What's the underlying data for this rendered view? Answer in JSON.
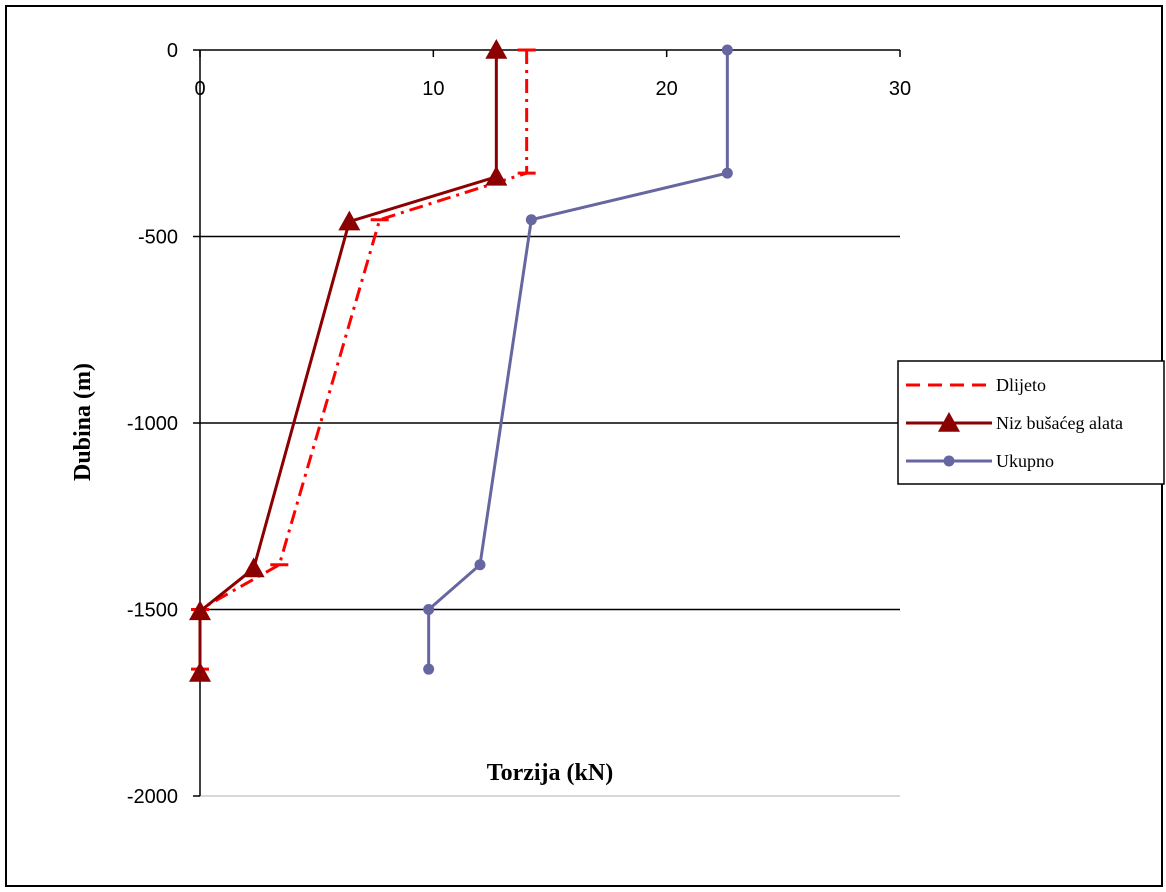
{
  "chart_data": {
    "type": "line",
    "xlabel": "Torzija (kN)",
    "ylabel": "Dubina (m)",
    "xlim": [
      0,
      30
    ],
    "ylim": [
      -2000,
      0
    ],
    "x_ticks": [
      0,
      10,
      20,
      30
    ],
    "y_ticks": [
      0,
      -500,
      -1000,
      -1500,
      -2000
    ],
    "grid": "horizontal major gridlines",
    "legend_position": "right",
    "series": [
      {
        "name": "Dlijeto",
        "color": "#ff0000",
        "style": "dash-dot",
        "marker": "none",
        "points": [
          [
            14,
            0
          ],
          [
            14,
            -330
          ],
          [
            7.7,
            -455
          ],
          [
            3.4,
            -1380
          ],
          [
            0,
            -1500
          ],
          [
            0,
            -1660
          ]
        ]
      },
      {
        "name": "Niz bušaćeg alata",
        "color": "#8b0000",
        "style": "solid",
        "marker": "triangle",
        "points": [
          [
            12.7,
            0
          ],
          [
            12.7,
            -340
          ],
          [
            6.4,
            -460
          ],
          [
            2.3,
            -1390
          ],
          [
            0,
            -1505
          ],
          [
            0,
            -1670
          ]
        ]
      },
      {
        "name": "Ukupno",
        "color": "#6666a0",
        "style": "solid",
        "marker": "circle",
        "points": [
          [
            22.6,
            0
          ],
          [
            22.6,
            -330
          ],
          [
            14.2,
            -455
          ],
          [
            12,
            -1380
          ],
          [
            9.8,
            -1500
          ],
          [
            9.8,
            -1660
          ]
        ]
      }
    ]
  }
}
